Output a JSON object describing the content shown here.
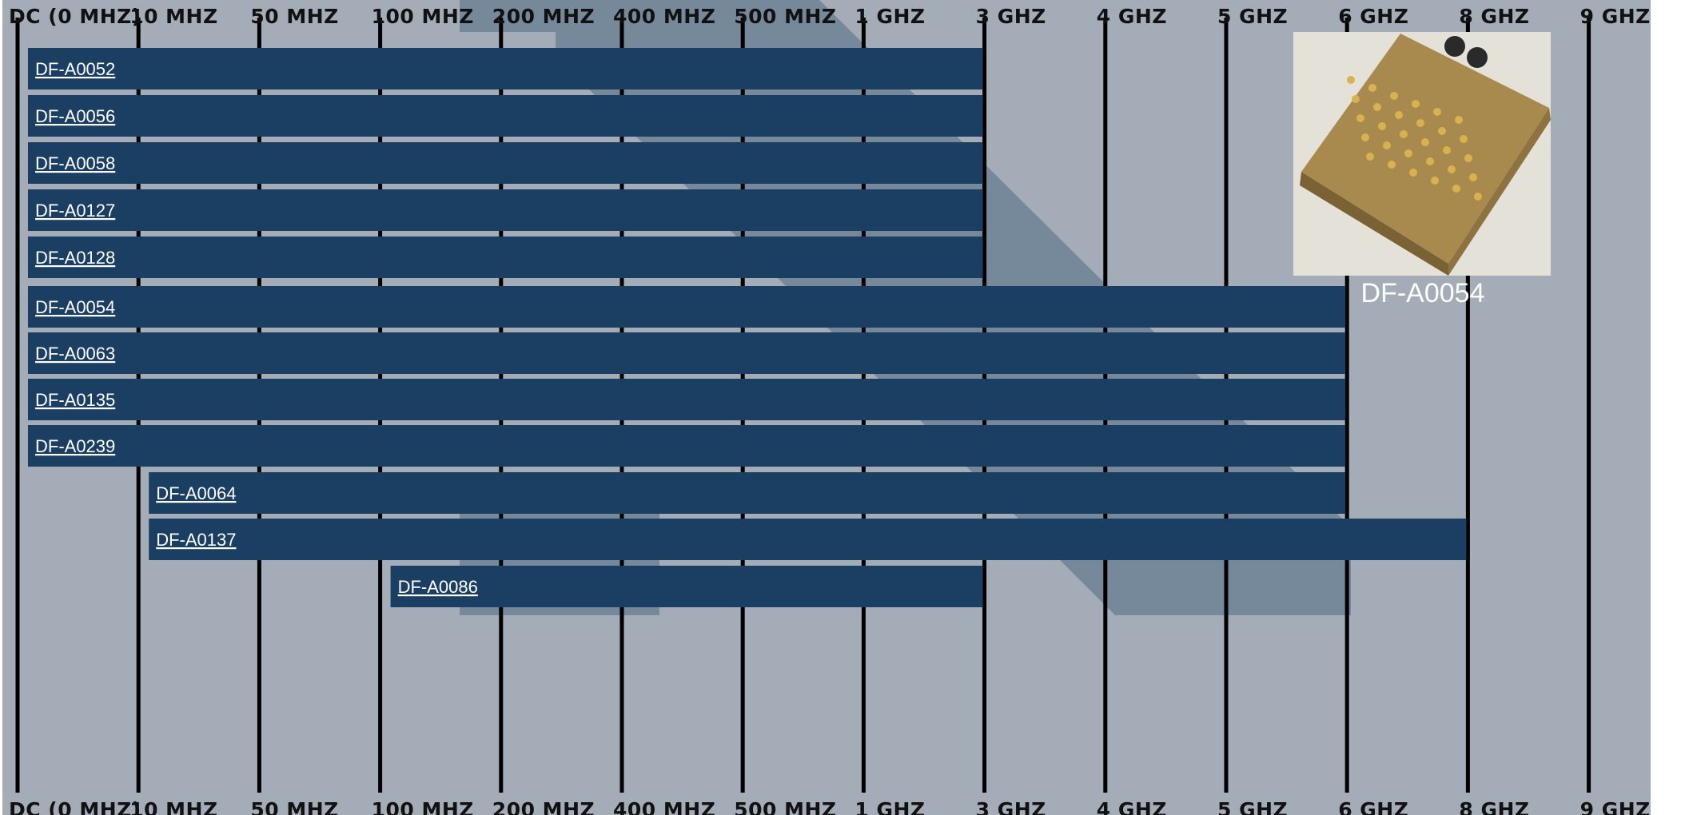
{
  "chart_data": {
    "type": "range-bar",
    "axis_ticks": [
      "DC (0 MHZ)",
      "10 MHZ",
      "50 MHZ",
      "100 MHZ",
      "200 MHZ",
      "400 MHZ",
      "500 MHZ",
      "1 GHZ",
      "3 GHZ",
      "4 GHZ",
      "5 GHZ",
      "6 GHZ",
      "8 GHZ",
      "9 GHZ"
    ],
    "series": [
      {
        "name": "DF-A0052",
        "start": "DC (0 MHZ)",
        "end": "3 GHZ"
      },
      {
        "name": "DF-A0056",
        "start": "DC (0 MHZ)",
        "end": "3 GHZ"
      },
      {
        "name": "DF-A0058",
        "start": "DC (0 MHZ)",
        "end": "3 GHZ"
      },
      {
        "name": "DF-A0127",
        "start": "DC (0 MHZ)",
        "end": "3 GHZ"
      },
      {
        "name": "DF-A0128",
        "start": "DC (0 MHZ)",
        "end": "3 GHZ"
      },
      {
        "name": "DF-A0054",
        "start": "DC (0 MHZ)",
        "end": "6 GHZ"
      },
      {
        "name": "DF-A0063",
        "start": "DC (0 MHZ)",
        "end": "6 GHZ"
      },
      {
        "name": "DF-A0135",
        "start": "DC (0 MHZ)",
        "end": "6 GHZ"
      },
      {
        "name": "DF-A0239",
        "start": "DC (0 MHZ)",
        "end": "6 GHZ"
      },
      {
        "name": "DF-A0064",
        "start": "10 MHZ",
        "end": "6 GHZ"
      },
      {
        "name": "DF-A0137",
        "start": "10 MHZ",
        "end": "8 GHZ"
      },
      {
        "name": "DF-A0086",
        "start": "100 MHZ",
        "end": "3 GHZ"
      }
    ],
    "grid": true
  },
  "product": {
    "caption": "DF-A0054"
  },
  "colors": {
    "background": "#a3acb7",
    "watermark": "#6f8297",
    "bar": "#1b3f63",
    "gridline": "#000000",
    "label": "#ffffff"
  }
}
